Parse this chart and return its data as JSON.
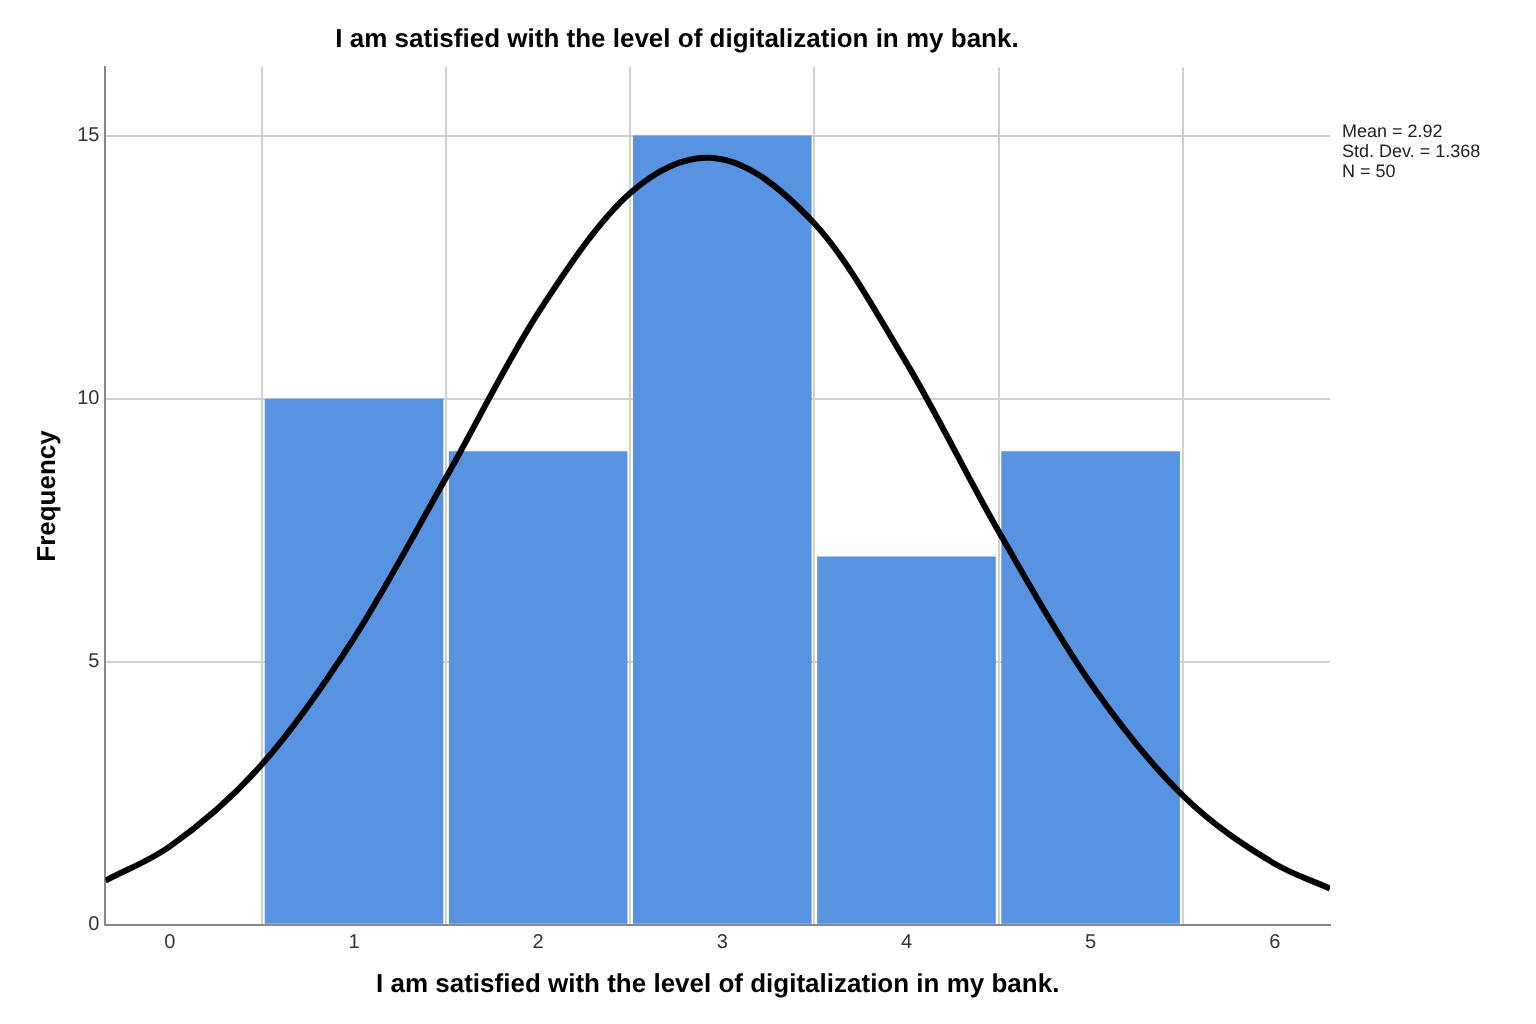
{
  "chart_data": {
    "type": "histogram",
    "title": "I am satisfied with the level of digitalization in my bank.",
    "xlabel": "I am satisfied with the level of digitalization in my bank.",
    "ylabel": "Frequency",
    "bins": [
      0.5,
      1.5,
      2.5,
      3.5,
      4.5,
      5.5
    ],
    "values": [
      10,
      9,
      15,
      7,
      9
    ],
    "color": "#5793e0",
    "series": [
      {
        "type": "line",
        "color": "#000000",
        "x": [
          -0.35,
          0,
          0.5,
          1,
          1.5,
          2,
          2.5,
          2.92,
          3.5,
          4,
          4.5,
          5,
          5.5,
          6,
          6.3
        ],
        "values": [
          0.84,
          1.49,
          3.05,
          5.45,
          8.5,
          11.63,
          13.91,
          14.58,
          13.33,
          10.68,
          7.48,
          4.59,
          2.46,
          1.16,
          0.69
        ]
      }
    ],
    "xlim": [
      -0.35,
      6.3
    ],
    "xticks": [
      0,
      1,
      2,
      3,
      4,
      5,
      6
    ],
    "ylim": [
      0,
      16.3
    ],
    "yticks": [
      0,
      5,
      10,
      15
    ],
    "annotations": [
      "Mean = 2.92",
      "Std. Dev. = 1.368",
      "N = 50"
    ],
    "grid": true,
    "legend": false,
    "marker": "none",
    "line_style": "solid"
  }
}
